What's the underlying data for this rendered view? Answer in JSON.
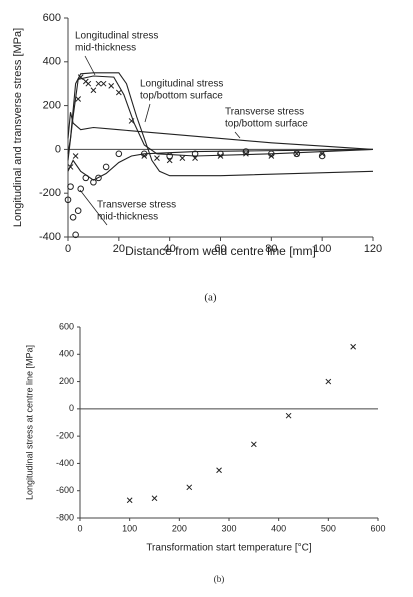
{
  "chart_data": [
    {
      "type": "line",
      "caption": "(a)",
      "x_label": "Distance from weld centre line [mm]",
      "y_label": "Longitudinal and transverse stress [MPa]",
      "xlim": [
        0,
        120
      ],
      "xticks": [
        0,
        20,
        40,
        60,
        80,
        100,
        120
      ],
      "ylim": [
        -400,
        600
      ],
      "yticks": [
        -400,
        -200,
        0,
        200,
        400,
        600
      ],
      "zero_line": true,
      "annotations": [
        [
          "Longitudinal stress",
          "mid-thickness"
        ],
        [
          "Longitudinal stress",
          "top/bottom surface"
        ],
        [
          "Transverse stress",
          "top/bottom surface"
        ],
        [
          "Transverse stress",
          "mid-thickness"
        ]
      ],
      "series": [
        {
          "style": "line",
          "color": "#222",
          "x": [
            0,
            1,
            3,
            5,
            10,
            20,
            23,
            27,
            30,
            33,
            36,
            40,
            60,
            120
          ],
          "values": [
            -20,
            50,
            300,
            345,
            350,
            350,
            300,
            150,
            50,
            -50,
            -100,
            -120,
            -120,
            -100
          ]
        },
        {
          "style": "line",
          "color": "#222",
          "x": [
            0,
            2,
            4,
            10,
            18,
            22,
            26,
            30,
            35,
            50,
            80,
            120
          ],
          "values": [
            -50,
            150,
            320,
            335,
            330,
            250,
            120,
            20,
            -20,
            -30,
            -20,
            0
          ]
        },
        {
          "style": "line",
          "color": "#222",
          "x": [
            0,
            1,
            2,
            5,
            10,
            20,
            40,
            60,
            80,
            100,
            120
          ],
          "values": [
            50,
            170,
            120,
            90,
            100,
            90,
            70,
            50,
            30,
            15,
            0
          ]
        },
        {
          "style": "line",
          "color": "#222",
          "x": [
            0,
            2,
            5,
            10,
            15,
            20,
            25,
            30,
            50,
            120
          ],
          "values": [
            -100,
            -50,
            -100,
            -140,
            -110,
            -60,
            -30,
            -20,
            -10,
            0
          ]
        },
        {
          "style": "x",
          "color": "#222",
          "x": [
            1,
            3,
            4,
            5,
            7,
            8,
            10,
            12,
            14,
            17,
            20,
            25,
            30,
            35,
            40,
            45,
            50,
            60,
            70,
            80,
            90,
            100
          ],
          "values": [
            -80,
            -30,
            230,
            330,
            310,
            300,
            270,
            300,
            300,
            290,
            260,
            130,
            -30,
            -40,
            -50,
            -40,
            -40,
            -30,
            -20,
            -30,
            -20,
            -20
          ]
        },
        {
          "style": "o",
          "color": "#222",
          "x": [
            0,
            1,
            2,
            3,
            4,
            5,
            7,
            10,
            12,
            15,
            20,
            30,
            40,
            50,
            60,
            70,
            80,
            90,
            100
          ],
          "values": [
            -230,
            -170,
            -310,
            -390,
            -280,
            -180,
            -130,
            -150,
            -130,
            -80,
            -20,
            -20,
            -30,
            -20,
            -20,
            -10,
            -20,
            -20,
            -30
          ]
        }
      ]
    },
    {
      "type": "scatter",
      "caption": "(b)",
      "x_label": "Transformation start temperature [°C]",
      "y_label": "Longitudinal stress at centre line [MPa]",
      "xlim": [
        0,
        600
      ],
      "xticks": [
        0,
        100,
        200,
        300,
        400,
        500,
        600
      ],
      "ylim": [
        -800,
        600
      ],
      "yticks": [
        -800,
        -600,
        -400,
        -200,
        0,
        200,
        400,
        600
      ],
      "zero_line": true,
      "series": [
        {
          "style": "x",
          "color": "#222",
          "x": [
            100,
            150,
            220,
            280,
            350,
            420,
            500,
            550
          ],
          "values": [
            -670,
            -655,
            -575,
            -450,
            -260,
            -50,
            200,
            455
          ]
        }
      ]
    }
  ]
}
